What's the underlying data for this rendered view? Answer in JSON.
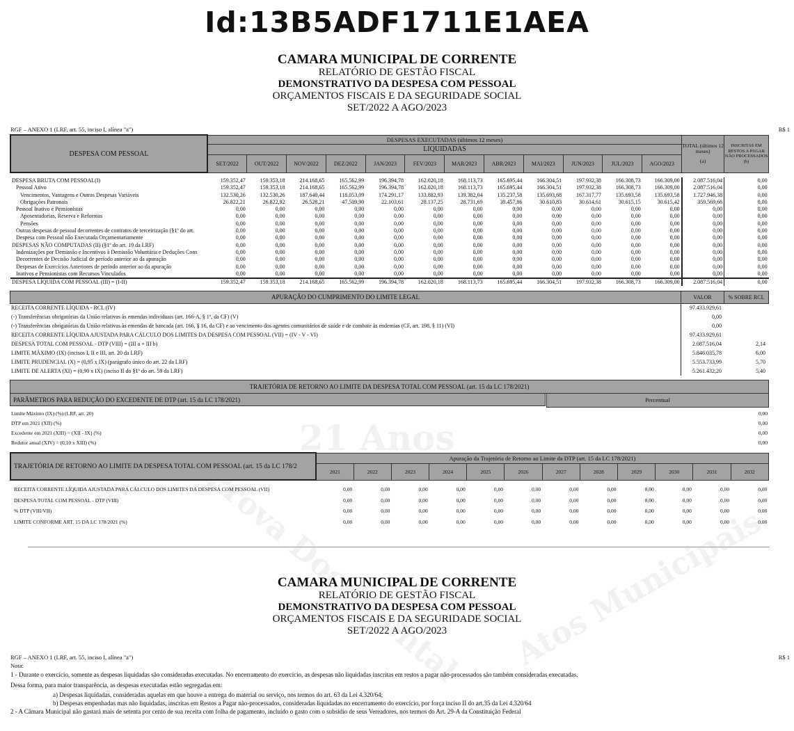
{
  "document_id": "Id:13B5ADF1711E1AEA",
  "header": {
    "entity": "CAMARA MUNICIPAL DE CORRENTE",
    "report": "RELATÓRIO DE GESTÃO FISCAL",
    "statement": "DEMONSTRATIVO DA DESPESA COM PESSOAL",
    "budgets": "ORÇAMENTOS FISCAIS E DA SEGURIDADE SOCIAL",
    "period": "SET/2022 A AGO/2023"
  },
  "annex": "RGF – ANEXO 1 (LRF, art. 55, inciso I, alínea \"a\")",
  "currency": "R$ 1",
  "watermarks": [
    "Prova Documental",
    "Atos Municipais",
    "21 Anos"
  ],
  "expense_table": {
    "label_header": "DESPESA COM PESSOAL",
    "group_header": "DESPESAS EXECUTADAS (últimos 12 meses)",
    "sub_header": "LIQUIDADAS",
    "months": [
      "SET/2022",
      "OUT/2022",
      "NOV/2022",
      "DEZ/2022",
      "JAN/2023",
      "FEV/2023",
      "MAR/2023",
      "ABR/2023",
      "MAI/2023",
      "JUN/2023",
      "JUL/2023",
      "AGO/2023"
    ],
    "total_header": "TOTAL (últimos 12 meses)",
    "total_sub": "(a)",
    "rp_header": "INSCRITAS EM RESTOS A PAGAR NÃO PROCESSADOS",
    "rp_sub": "(b)",
    "rows": [
      {
        "label": "DESPESA BRUTA COM PESSOAL(I)",
        "indent": 0,
        "values": [
          "159.352,47",
          "159.353,18",
          "214.168,65",
          "165.562,99",
          "196.394,78",
          "162.020,18",
          "168.113,73",
          "165.695,44",
          "166.304,51",
          "197.932,38",
          "166.308,73",
          "166.309,00",
          "2.087.516,04",
          "0,00"
        ]
      },
      {
        "label": "Pessoal Ativo",
        "indent": 1,
        "values": [
          "159.352,47",
          "159.353,18",
          "214.168,65",
          "165.562,99",
          "196.394,78",
          "162.020,18",
          "168.113,73",
          "165.695,44",
          "166.304,51",
          "197.932,38",
          "166.308,73",
          "166.309,00",
          "2.087.516,04",
          "0,00"
        ]
      },
      {
        "label": "Vencimentos, Vantagens e Outras Despesas Variáveis",
        "indent": 2,
        "values": [
          "132.530,26",
          "132.530,26",
          "187.640,44",
          "118.053,09",
          "174.291,17",
          "133.882,93",
          "139.382,04",
          "135.237,58",
          "135.693,68",
          "167.317,77",
          "135.693,58",
          "135.693,58",
          "1.727.946,38",
          "0,00"
        ]
      },
      {
        "label": "Obrigações Patronais",
        "indent": 2,
        "values": [
          "26.822,21",
          "26.822,92",
          "26.528,21",
          "47.509,90",
          "22.103,61",
          "28.137,25",
          "28.731,69",
          "30.457,86",
          "30.610,83",
          "30.614,61",
          "30.615,15",
          "30.615,42",
          "359.569,66",
          "0,00"
        ]
      },
      {
        "label": "Pessoal Inativo e Pensionistas",
        "indent": 1,
        "values": [
          "0,00",
          "0,00",
          "0,00",
          "0,00",
          "0,00",
          "0,00",
          "0,00",
          "0,00",
          "0,00",
          "0,00",
          "0,00",
          "0,00",
          "0,00",
          "0,00"
        ]
      },
      {
        "label": "Aposentadorias, Reserva e Reformas",
        "indent": 2,
        "values": [
          "0,00",
          "0,00",
          "0,00",
          "0,00",
          "0,00",
          "0,00",
          "0,00",
          "0,00",
          "0,00",
          "0,00",
          "0,00",
          "0,00",
          "0,00",
          "0,00"
        ]
      },
      {
        "label": "Pensões",
        "indent": 2,
        "values": [
          "0,00",
          "0,00",
          "0,00",
          "0,00",
          "0,00",
          "0,00",
          "0,00",
          "0,00",
          "0,00",
          "0,00",
          "0,00",
          "0,00",
          "0,00",
          "0,00"
        ]
      },
      {
        "label": "Outras despesas de pessoal decorrentes de contratos de terceirização (§1º do art.",
        "indent": 1,
        "values": [
          "0,00",
          "0,00",
          "0,00",
          "0,00",
          "0,00",
          "0,00",
          "0,00",
          "0,00",
          "0,00",
          "0,00",
          "0,00",
          "0,00",
          "0,00",
          "0,00"
        ]
      },
      {
        "label": "Despesa com Pessoal não Executada Orçamentariamente",
        "indent": 1,
        "values": [
          "0,00",
          "0,00",
          "0,00",
          "0,00",
          "0,00",
          "0,00",
          "0,00",
          "0,00",
          "0,00",
          "0,00",
          "0,00",
          "0,00",
          "0,00",
          "0,00"
        ]
      },
      {
        "label": "DESPESAS NÃO COMPUTADAS (II) (§1º do art. 19 da LRF)",
        "indent": 0,
        "values": [
          "0,00",
          "0,00",
          "0,00",
          "0,00",
          "0,00",
          "0,00",
          "0,00",
          "0,00",
          "0,00",
          "0,00",
          "0,00",
          "0,00",
          "0,00",
          "0,00"
        ]
      },
      {
        "label": "Indenizações por Demissão e Incentivos à Demissão Voluntária e Deduções Cons",
        "indent": 1,
        "values": [
          "0,00",
          "0,00",
          "0,00",
          "0,00",
          "0,00",
          "0,00",
          "0,00",
          "0,00",
          "0,00",
          "0,00",
          "0,00",
          "0,00",
          "0,00",
          "0,00"
        ]
      },
      {
        "label": "Decorrentes de Decisão Judicial de período anterior ao da apuração",
        "indent": 1,
        "values": [
          "0,00",
          "0,00",
          "0,00",
          "0,00",
          "0,00",
          "0,00",
          "0,00",
          "0,00",
          "0,00",
          "0,00",
          "0,00",
          "0,00",
          "0,00",
          "0,00"
        ]
      },
      {
        "label": "Despesas de Exercícios Anteriores de período anterior ao da apuração",
        "indent": 1,
        "values": [
          "0,00",
          "0,00",
          "0,00",
          "0,00",
          "0,00",
          "0,00",
          "0,00",
          "0,00",
          "0,00",
          "0,00",
          "0,00",
          "0,00",
          "0,00",
          "0,00"
        ]
      },
      {
        "label": "Inativos e Pensionistas com Recursos Vinculados",
        "indent": 1,
        "values": [
          "0,00",
          "0,00",
          "0,00",
          "0,00",
          "0,00",
          "0,00",
          "0,00",
          "0,00",
          "0,00",
          "0,00",
          "0,00",
          "0,00",
          "0,00",
          "0,00"
        ]
      },
      {
        "label": "DESPESA LÍQUIDA COM PESSOAL (III) = (I-II)",
        "indent": 0,
        "values": [
          "159.352,47",
          "159.353,18",
          "214.168,65",
          "165.562,99",
          "196.394,78",
          "162.020,18",
          "168.113,73",
          "165.695,44",
          "166.304,51",
          "197.932,38",
          "166.308,73",
          "166.309,00",
          "2.087.516,04",
          "0,00"
        ]
      }
    ]
  },
  "limit_section": {
    "title": "APURAÇÃO DO CUMPRIMENTO DO LIMITE LEGAL",
    "value_header": "VALOR",
    "pct_header": "% SOBRE RCL",
    "rows": [
      {
        "label": "RECEITA CORRENTE LÍQUIDA - RCL (IV)",
        "value": "97.433.929,61",
        "pct": ""
      },
      {
        "label": "(-) Transferências obrigatórias da União relativas às emendas individuais (art. 166-A, § 1º, da CF) (V)",
        "value": "0,00",
        "pct": ""
      },
      {
        "label": "(-) Transferências obrigatórias da União relativas às emendas de bancada (art. 166, § 16, da CF) e ao vencimento dos agentes comunitários de saúde e de combate às endemias (CF, art. 198, § 11) (VI)",
        "value": "0,00",
        "pct": ""
      },
      {
        "label": "RECEITA CORRENTE LÍQUIDA AJUSTADA PARA CÁLCULO DOS LIMITES DA DESPESA COM PESSOAL (VII) = (IV - V - VI)",
        "value": "97.433.929,61",
        "pct": ""
      },
      {
        "label": "DESPESA TOTAL COM PESSOAL - DTP (VIII) = (III a + III b)",
        "value": "2.087.516,04",
        "pct": "2,14"
      },
      {
        "label": "LIMITE MÁXIMO (IX) (incisos I, II e III, art. 20 da LRF)",
        "value": "5.846.035,78",
        "pct": "6,00"
      },
      {
        "label": "LIMITE PRUDENCIAL (X) =  (0,95 x IX) (parágrafo único do art. 22 da LRF)",
        "value": "5.553.733,99",
        "pct": "5,70"
      },
      {
        "label": "LIMITE DE ALERTA (XI) =  (0,90 x IX) (inciso II do §1º do art. 59 da LRF)",
        "value": "5.261.432,20",
        "pct": "5,40"
      }
    ]
  },
  "trajectory_params": {
    "title": "TRAJETÓRIA DE RETORNO AO LIMITE DA DESPESA TOTAL COM PESSOAL (art. 15 da LC 178/2021)",
    "params_header": "PARÂMETROS PARA REDUÇÃO DO EXCEDENTE DE DTP (art. 15 da LC 178/2021)",
    "pct_header": "Percentual",
    "rows": [
      {
        "label": "Limite Máximo (IX) (%) (LRF, art. 20)",
        "value": "0,00"
      },
      {
        "label": "DTP em 2021 (XII) (%)",
        "value": "0,00"
      },
      {
        "label": "Excedente em 2021 (XIII) = (XII - IX) (%)",
        "value": "0,00"
      },
      {
        "label": "Redutor anual (XIV) = (0,10 x XIII) (%)",
        "value": "0,00"
      }
    ]
  },
  "trajectory_table": {
    "label_header": "TRAJETÓRIA DE RETORNO AO LIMITE DA DESPESA TOTAL COM PESSOAL (art. 15 da LC 178/2",
    "group_header": "Apuração da Trajetória de Retorno ao Limite da DTP (art. 15 da LC 178/2021)",
    "years": [
      "2021",
      "2022",
      "2023",
      "2024",
      "2025",
      "2026",
      "2027",
      "2028",
      "2029",
      "2030",
      "2031",
      "2032"
    ],
    "rows": [
      {
        "label": "RECEITA CORRENTE LÍQUIDA AJUSTADA PARA CÁLCULO DOS LIMITES DA DESPESA COM PESSOAL (VII)",
        "values": [
          "0,00",
          "0,00",
          "0,00",
          "0,00",
          "0,00",
          "0,00",
          "0,00",
          "0,00",
          "0,00",
          "0,00",
          "0,00",
          "0,00"
        ]
      },
      {
        "label": "DESPESA TOTAL COM PESSOAL - DTP (VIII)",
        "values": [
          "0,00",
          "0,00",
          "0,00",
          "0,00",
          "0,00",
          "0,00",
          "0,00",
          "0,00",
          "0,00",
          "0,00",
          "0,00",
          "0,00"
        ]
      },
      {
        "label": "% DTP (VIII/VII)",
        "values": [
          "0,00",
          "0,00",
          "0,00",
          "0,00",
          "0,00",
          "0,00",
          "0,00",
          "0,00",
          "0,00",
          "0,00",
          "0,00",
          "0,00"
        ]
      },
      {
        "label": "LIMITE CONFORME ART. 15 DA LC 178/2021 (%)",
        "values": [
          "0,00",
          "0,00",
          "0,00",
          "0,00",
          "0,00",
          "0,00",
          "0,00",
          "0,00",
          "0,00",
          "0,00",
          "0,00",
          "0,00"
        ]
      }
    ]
  },
  "notes": {
    "title": "Nota:",
    "lines": [
      "1 - Durante o exercício, somente as despesas liquidadas são consideradas executadas. No encerramento do exercício, as despesas não liquidadas inscritas em restos a pagar não-processados são também consideradas executadas.",
      "Dessa forma, para maior transparência, as despesas executadas estão segregadas em:",
      "a) Despesas liquidadas, consideradas aquelas em que houve a entrega do material ou serviço, nos termos do art. 63 da Lei 4.320/64;",
      "b) Despesas empenhadas mas não liquidadas, inscritas em Restos a Pagar não-processados, consideradas liquidadas no encerramento do exercício, por força inciso II do art.35 da Lei 4.320/64",
      "2 - A Câmara Municipal não gastará mais de setenta por cento de sua receita com folha de pagamento, incluído o gasto com o subsídio de seus Vereadores, nos termos do Art. 29-A da Constituição Federal"
    ]
  }
}
